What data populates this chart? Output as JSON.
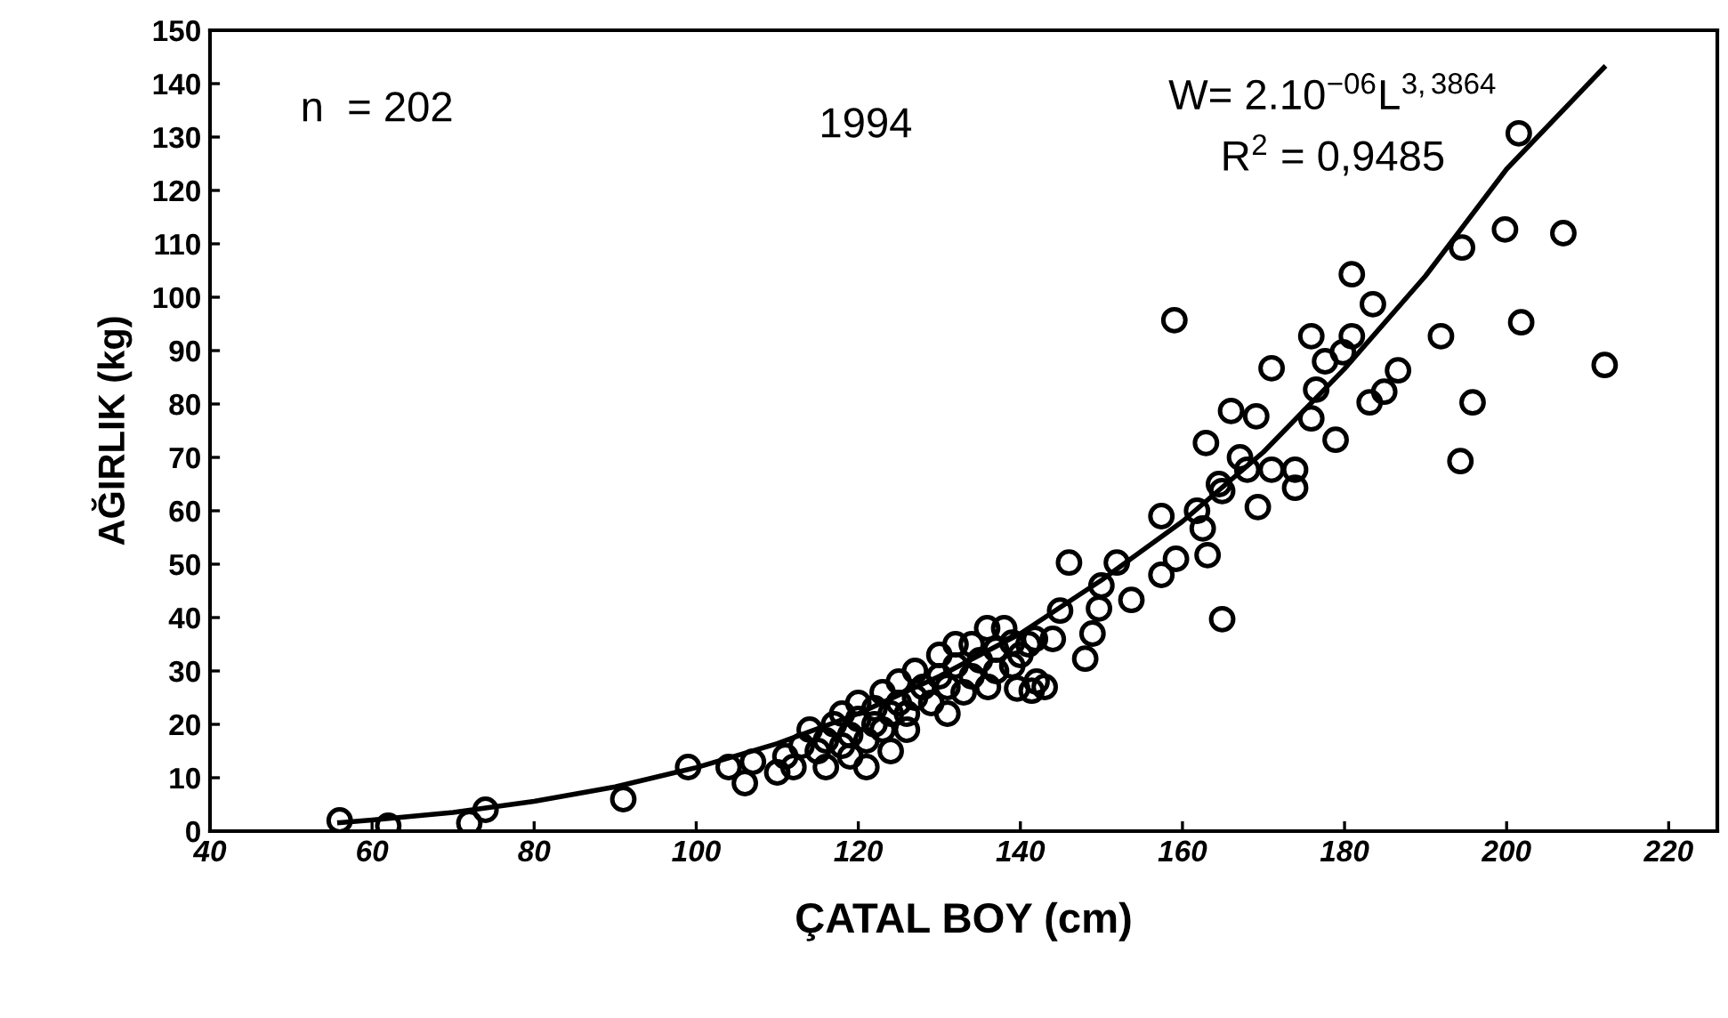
{
  "chart_data": {
    "type": "scatter",
    "xlabel": "ÇATAL BOY (cm)",
    "ylabel": "AĞIRLIK (kg)",
    "xlim": [
      40,
      226
    ],
    "xticks": [
      40,
      60,
      80,
      100,
      120,
      140,
      160,
      180,
      200,
      220
    ],
    "ylim": [
      0,
      150
    ],
    "yticks": [
      0,
      10,
      20,
      30,
      40,
      50,
      60,
      70,
      80,
      90,
      100,
      110,
      120,
      130,
      140,
      150
    ],
    "grid": false,
    "legend": false,
    "marker": "circle",
    "annotations": [
      "n  = 202",
      "1994",
      "W= 2.10$^{−06}$L$^{3,3864}$",
      "R$^{2}$ = 0,9485"
    ],
    "series": [
      {
        "color": "#000000",
        "x": [
          56,
          62,
          72,
          74,
          91,
          99,
          104,
          106,
          107,
          110,
          111,
          112,
          113,
          114,
          115,
          116,
          116,
          117,
          118,
          118,
          119,
          119,
          120,
          120,
          121,
          121,
          122,
          122,
          123,
          123,
          124,
          124,
          125,
          125,
          126,
          126,
          127,
          127,
          128,
          129,
          130,
          130,
          131,
          131,
          132,
          132,
          133,
          134,
          134,
          135,
          136,
          137,
          137,
          138,
          139,
          140,
          141,
          142,
          143,
          144,
          159,
          180.9,
          183.5,
          175.9,
          180.9,
          179.8,
          177.6,
          171,
          176.5,
          175.9,
          178.9,
          183.1,
          184.9,
          186.6,
          191.9,
          201.8,
          195.8,
          194.3,
          212.1,
          166,
          169.1,
          162.9,
          167.1,
          168,
          171,
          173.9,
          173.9,
          169.3,
          164.5,
          164.9,
          157.4,
          161.8,
          162.5,
          163.1,
          159.2,
          157.4,
          146,
          151.9,
          150,
          153.7,
          149.7,
          144.9,
          148.9,
          148,
          164.9,
          135.9,
          141.8,
          139,
          141.4,
          139.6,
          201.5,
          194.5,
          199.8,
          207
        ],
        "values": [
          2,
          1,
          1.5,
          4,
          6,
          12,
          12,
          9,
          13,
          11,
          14,
          12,
          16,
          19,
          15,
          17,
          12,
          20,
          22,
          16,
          18,
          14,
          24,
          21,
          17,
          12,
          20,
          23,
          19,
          26,
          22,
          15,
          28,
          24,
          19,
          22,
          30,
          25,
          27,
          24,
          29,
          33,
          27,
          22,
          35,
          31,
          26,
          29,
          35,
          32,
          27,
          30,
          34,
          38,
          31,
          33,
          35,
          28,
          27,
          36,
          95.7,
          104.3,
          98.7,
          92.7,
          92.7,
          89.7,
          88,
          86.7,
          82.7,
          77.3,
          73.3,
          80.3,
          82.3,
          86.3,
          92.7,
          95.3,
          80.3,
          69.3,
          87.3,
          78.7,
          77.7,
          72.7,
          70,
          67.7,
          67.7,
          67.7,
          64.3,
          60.7,
          65,
          63.7,
          59,
          60,
          56.7,
          51.7,
          51,
          48,
          50.3,
          50.3,
          46,
          43.3,
          41.7,
          41.3,
          37,
          32.3,
          39.7,
          38,
          36,
          35.3,
          26.3,
          26.7,
          130.7,
          109.3,
          112.7,
          112
        ]
      },
      {
        "type": "line",
        "color": "#000000",
        "marker": "none",
        "line_style": "solid",
        "x": [
          56,
          60,
          70,
          80,
          90,
          100,
          110,
          120,
          130,
          140,
          150,
          160,
          170,
          180,
          190,
          200,
          212
        ],
        "values": [
          1.6,
          2.1,
          3.5,
          5.6,
          8.3,
          11.9,
          16.4,
          22,
          29,
          37,
          47,
          58,
          71,
          86.6,
          104,
          124,
          143
        ]
      }
    ]
  }
}
